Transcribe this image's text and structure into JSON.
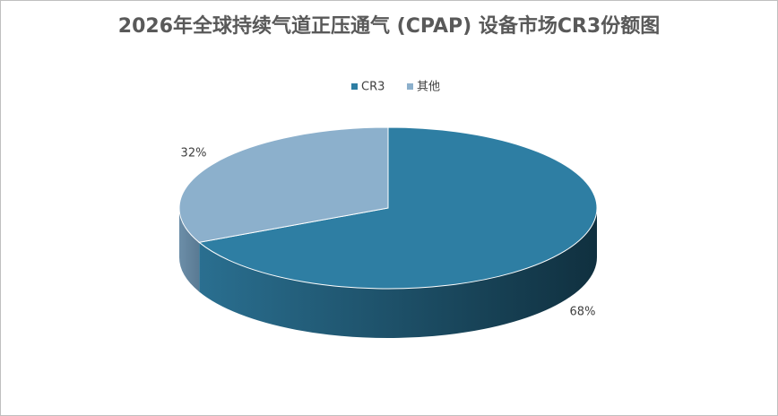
{
  "chart_data": {
    "type": "pie",
    "title": "2026年全球持续气道正压通气 (CPAP) 设备市场CR3份额图",
    "categories": [
      "CR3",
      "其他"
    ],
    "values": [
      68,
      32
    ],
    "value_labels": [
      "68%",
      "32%"
    ],
    "colors": [
      "#2e7ea3",
      "#8cb0cc"
    ],
    "legend": "top"
  }
}
